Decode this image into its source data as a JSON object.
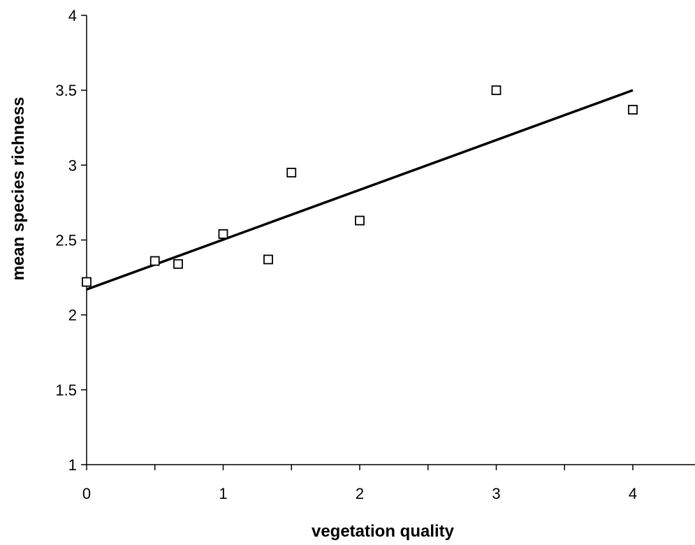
{
  "chart_data": {
    "type": "scatter",
    "title": "",
    "xlabel": "vegetation quality",
    "ylabel": "mean species richness",
    "xlim": [
      0,
      4.5
    ],
    "ylim": [
      1,
      4
    ],
    "xticks": [
      0,
      1,
      2,
      3,
      4
    ],
    "yticks": [
      1,
      1.5,
      2,
      2.5,
      3,
      3.5,
      4
    ],
    "grid": false,
    "legend": "none",
    "series": [
      {
        "marker": "open-square",
        "x": [
          0,
          0.5,
          0.67,
          1,
          1.33,
          1.5,
          2,
          3,
          4
        ],
        "y": [
          2.22,
          2.36,
          2.34,
          2.54,
          2.37,
          2.95,
          2.63,
          3.5,
          3.37
        ]
      }
    ],
    "trendline": {
      "type": "linear",
      "x": [
        0,
        4
      ],
      "y": [
        2.17,
        3.5
      ]
    }
  }
}
